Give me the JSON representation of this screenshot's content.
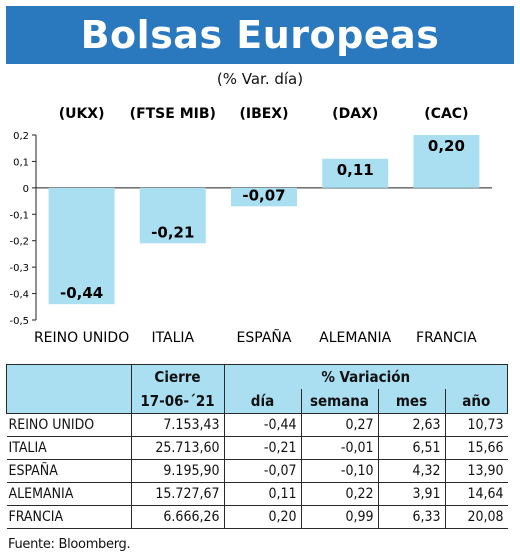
{
  "header": {
    "title": "Bolsas Europeas",
    "subtitle": "(% Var. día)"
  },
  "colors": {
    "banner": "#2a78bd",
    "bar": "#a9dff1",
    "header_bg": "#a9dff1"
  },
  "chart_data": {
    "type": "bar",
    "categories": [
      "REINO UNIDO",
      "ITALIA",
      "ESPAÑA",
      "ALEMANIA",
      "FRANCIA"
    ],
    "indices": [
      "(UKX)",
      "(FTSE MIB)",
      "(IBEX)",
      "(DAX)",
      "(CAC)"
    ],
    "values": [
      -0.44,
      -0.21,
      -0.07,
      0.11,
      0.2
    ],
    "value_labels": [
      "-0,44",
      "-0,21",
      "-0,07",
      "0,11",
      "0,20"
    ],
    "yticks": [
      0.2,
      0.1,
      0,
      -0.1,
      -0.2,
      -0.3,
      -0.4,
      -0.5
    ],
    "ytick_labels": [
      "0,2",
      "0,1",
      "0",
      "-0,1",
      "-0,2",
      "-0,3",
      "-0,4",
      "-0,5"
    ],
    "ylim": [
      -0.5,
      0.2
    ],
    "grid": false,
    "title": "Bolsas Europeas",
    "subtitle": "(% Var. día)",
    "xlabel": "",
    "ylabel": ""
  },
  "table": {
    "group_headers": {
      "cierre": "Cierre",
      "variacion": "% Variación"
    },
    "sub_headers": {
      "date": "17-06-´21",
      "dia": "día",
      "semana": "semana",
      "mes": "mes",
      "ano": "año"
    },
    "rows": [
      {
        "name": "REINO UNIDO",
        "cierre": "7.153,43",
        "dia": "-0,44",
        "semana": "0,27",
        "mes": "2,63",
        "ano": "10,73"
      },
      {
        "name": "ITALIA",
        "cierre": "25.713,60",
        "dia": "-0,21",
        "semana": "-0,01",
        "mes": "6,51",
        "ano": "15,66"
      },
      {
        "name": "ESPAÑA",
        "cierre": "9.195,90",
        "dia": "-0,07",
        "semana": "-0,10",
        "mes": "4,32",
        "ano": "13,90"
      },
      {
        "name": "ALEMANIA",
        "cierre": "15.727,67",
        "dia": "0,11",
        "semana": "0,22",
        "mes": "3,91",
        "ano": "14,64"
      },
      {
        "name": "FRANCIA",
        "cierre": "6.666,26",
        "dia": "0,20",
        "semana": "0,99",
        "mes": "6,33",
        "ano": "20,08"
      }
    ]
  },
  "source": "Fuente: Bloomberg."
}
